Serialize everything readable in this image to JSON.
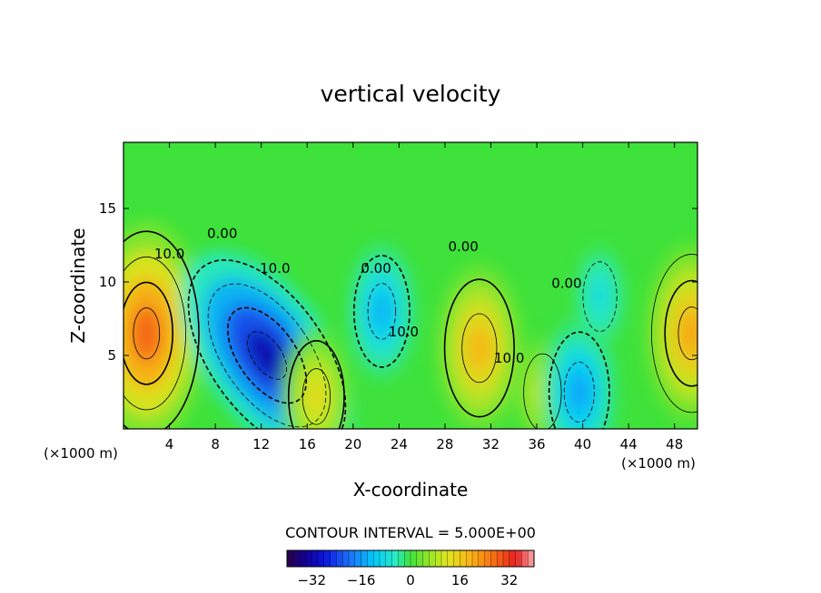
{
  "chart_data": {
    "type": "heatmap",
    "title": "vertical velocity",
    "xlabel": "X-coordinate",
    "ylabel": "Z-coordinate",
    "x_unit_left": "(×1000 m)",
    "x_unit_right": "(×1000 m)",
    "x_ticks": [
      4,
      8,
      12,
      16,
      20,
      24,
      28,
      32,
      36,
      40,
      44,
      48
    ],
    "y_ticks": [
      5,
      10,
      15
    ],
    "xlim": [
      0,
      50
    ],
    "ylim": [
      0,
      19.5
    ],
    "contour_interval_label": "CONTOUR INTERVAL = 5.000E+00",
    "colorbar": {
      "range": [
        -40,
        40
      ],
      "ticks": [
        -32,
        -16,
        0,
        16,
        32
      ]
    },
    "contour_labels": [
      {
        "text": "10.0",
        "x": 4,
        "y": 11.6
      },
      {
        "text": "0.00",
        "x": 8.6,
        "y": 13
      },
      {
        "text": "10.0",
        "x": 13.2,
        "y": 10.6
      },
      {
        "text": "0.00",
        "x": 22,
        "y": 10.6
      },
      {
        "text": "0.00",
        "x": 29.6,
        "y": 12.1
      },
      {
        "text": "0.00",
        "x": 38.6,
        "y": 9.6
      },
      {
        "text": "10.0",
        "x": 24.4,
        "y": 6.3
      },
      {
        "text": "10.0",
        "x": 33.6,
        "y": 4.5
      }
    ],
    "features": [
      {
        "sign": "positive",
        "peak": 32,
        "x": 2,
        "y": 6.5
      },
      {
        "sign": "negative",
        "peak": -36,
        "x": 12.5,
        "y": 5
      },
      {
        "sign": "negative",
        "peak": -16,
        "x": 22.5,
        "y": 8
      },
      {
        "sign": "positive",
        "peak": 16,
        "x": 16.8,
        "y": 2.2
      },
      {
        "sign": "positive",
        "peak": 22,
        "x": 31,
        "y": 5.5
      },
      {
        "sign": "positive",
        "peak": 12,
        "x": 36.5,
        "y": 2.5
      },
      {
        "sign": "negative",
        "peak": -18,
        "x": 39.7,
        "y": 2.5
      },
      {
        "sign": "negative",
        "peak": -10,
        "x": 41.5,
        "y": 9
      },
      {
        "sign": "positive",
        "peak": 24,
        "x": 49.5,
        "y": 6.5
      }
    ]
  }
}
